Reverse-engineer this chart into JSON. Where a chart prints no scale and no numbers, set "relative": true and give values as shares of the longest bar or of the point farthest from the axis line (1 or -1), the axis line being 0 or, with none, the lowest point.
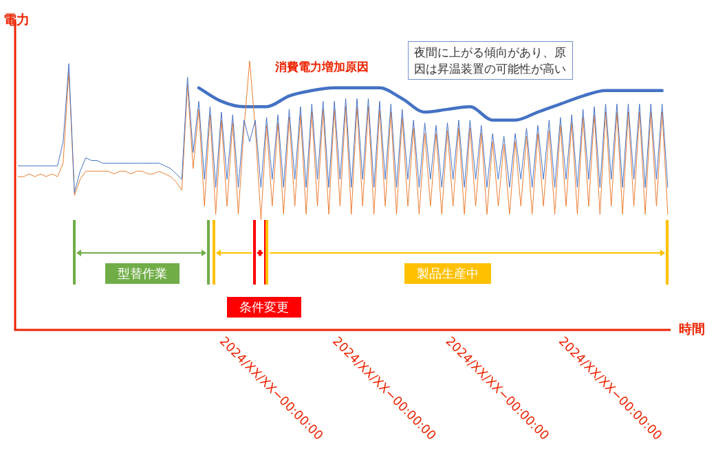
{
  "chart_data": {
    "type": "line",
    "relative": true,
    "xlabel": "時間",
    "ylabel": "電力",
    "marker": "none",
    "legend": false,
    "categories": [
      null,
      null,
      null,
      null,
      null,
      null,
      null,
      null,
      null,
      null,
      null,
      null,
      null,
      null,
      null,
      null,
      null,
      null,
      null,
      null,
      null,
      null,
      null,
      null,
      null,
      null,
      null,
      null,
      null,
      null,
      null,
      null,
      null,
      null,
      null,
      null,
      "2024/XX/XX−00:00:00",
      null,
      null,
      null,
      null,
      null,
      null,
      null,
      null,
      null,
      null,
      null,
      null,
      null,
      null,
      null,
      null,
      null,
      null,
      null,
      "2024/XX/XX−00:00:00",
      null,
      null,
      null,
      null,
      null,
      null,
      null,
      null,
      null,
      null,
      null,
      null,
      null,
      null,
      null,
      null,
      null,
      null,
      null,
      "2024/XX/XX−00:00:00",
      null,
      null,
      null,
      null,
      null,
      null,
      null,
      null,
      null,
      null,
      null,
      null,
      null,
      null,
      null,
      null,
      null,
      null,
      null,
      "2024/XX/XX−00:00:00",
      null,
      null,
      null,
      null,
      null,
      null,
      null,
      null,
      null,
      null,
      null,
      null,
      null,
      null,
      null,
      null,
      null,
      null,
      null
    ],
    "series": [
      {
        "color": "#4472c4",
        "values": [
          0.61,
          0.61,
          0.61,
          0.61,
          0.61,
          0.61,
          0.61,
          0.61,
          0.7,
          0.99,
          0.51,
          0.59,
          0.64,
          0.63,
          0.63,
          0.62,
          0.62,
          0.62,
          0.62,
          0.62,
          0.62,
          0.62,
          0.62,
          0.62,
          0.62,
          0.62,
          0.61,
          0.6,
          0.58,
          0.56,
          0.94,
          0.66,
          0.85,
          0.56,
          0.83,
          0.53,
          0.81,
          0.56,
          0.8,
          0.53,
          0.78,
          0.7,
          0.78,
          0.53,
          0.79,
          0.56,
          0.8,
          0.53,
          0.82,
          0.56,
          0.83,
          0.53,
          0.84,
          0.56,
          0.85,
          0.53,
          0.85,
          0.56,
          0.86,
          0.53,
          0.86,
          0.56,
          0.86,
          0.53,
          0.85,
          0.56,
          0.84,
          0.53,
          0.82,
          0.56,
          0.78,
          0.53,
          0.77,
          0.56,
          0.76,
          0.53,
          0.77,
          0.56,
          0.78,
          0.53,
          0.78,
          0.56,
          0.76,
          0.53,
          0.73,
          0.56,
          0.72,
          0.53,
          0.73,
          0.56,
          0.75,
          0.53,
          0.76,
          0.56,
          0.78,
          0.53,
          0.79,
          0.56,
          0.8,
          0.53,
          0.82,
          0.56,
          0.83,
          0.53,
          0.84,
          0.56,
          0.84,
          0.53,
          0.84,
          0.56,
          0.84,
          0.53,
          0.84,
          0.56,
          0.84,
          0.53
        ]
      },
      {
        "color": "#ed7d31",
        "values": [
          0.57,
          0.57,
          0.58,
          0.57,
          0.58,
          0.57,
          0.58,
          0.57,
          0.62,
          0.96,
          0.5,
          0.56,
          0.59,
          0.59,
          0.59,
          0.59,
          0.59,
          0.58,
          0.59,
          0.59,
          0.58,
          0.59,
          0.59,
          0.58,
          0.58,
          0.59,
          0.58,
          0.57,
          0.55,
          0.52,
          0.91,
          0.6,
          0.82,
          0.46,
          0.8,
          0.43,
          0.78,
          0.46,
          0.77,
          0.43,
          0.75,
          1,
          0.75,
          0.41,
          0.76,
          0.46,
          0.77,
          0.43,
          0.79,
          0.46,
          0.8,
          0.43,
          0.81,
          0.46,
          0.82,
          0.43,
          0.82,
          0.46,
          0.83,
          0.43,
          0.83,
          0.46,
          0.83,
          0.43,
          0.82,
          0.46,
          0.81,
          0.43,
          0.79,
          0.46,
          0.75,
          0.43,
          0.73,
          0.46,
          0.73,
          0.43,
          0.74,
          0.46,
          0.75,
          0.43,
          0.75,
          0.46,
          0.73,
          0.43,
          0.7,
          0.46,
          0.69,
          0.43,
          0.7,
          0.46,
          0.72,
          0.43,
          0.73,
          0.46,
          0.74,
          0.43,
          0.76,
          0.46,
          0.77,
          0.43,
          0.79,
          0.46,
          0.8,
          0.43,
          0.81,
          0.46,
          0.81,
          0.43,
          0.81,
          0.46,
          0.81,
          0.43,
          0.81,
          0.46,
          0.81,
          0.43
        ]
      },
      {
        "color": "#4472c4",
        "values": [
          null,
          null,
          null,
          null,
          null,
          null,
          null,
          null,
          null,
          null,
          null,
          null,
          null,
          null,
          null,
          null,
          null,
          null,
          null,
          null,
          null,
          null,
          null,
          null,
          null,
          null,
          null,
          null,
          null,
          null,
          null,
          null,
          0.9,
          null,
          null,
          null,
          0.85,
          null,
          null,
          null,
          0.83,
          null,
          null,
          null,
          0.83,
          null,
          null,
          null,
          0.87,
          null,
          null,
          null,
          0.89,
          null,
          null,
          null,
          0.9,
          null,
          null,
          null,
          0.9,
          null,
          null,
          null,
          0.9,
          null,
          null,
          null,
          0.86,
          null,
          null,
          null,
          0.81,
          null,
          null,
          null,
          0.82,
          null,
          null,
          null,
          0.83,
          null,
          null,
          null,
          0.78,
          null,
          null,
          null,
          0.78,
          null,
          null,
          null,
          0.81,
          null,
          null,
          null,
          0.84,
          null,
          null,
          null,
          0.87,
          null,
          null,
          null,
          0.89,
          null,
          null,
          null,
          0.89,
          null,
          null,
          null,
          0.89,
          null,
          0.89,
          null
        ]
      }
    ],
    "annotations": [
      "消費電力増加原因",
      "夜間に上がる傾向があり、原因は昇温装置の可能性が高い",
      "型替作業",
      "条件変更",
      "製品生産中"
    ]
  }
}
